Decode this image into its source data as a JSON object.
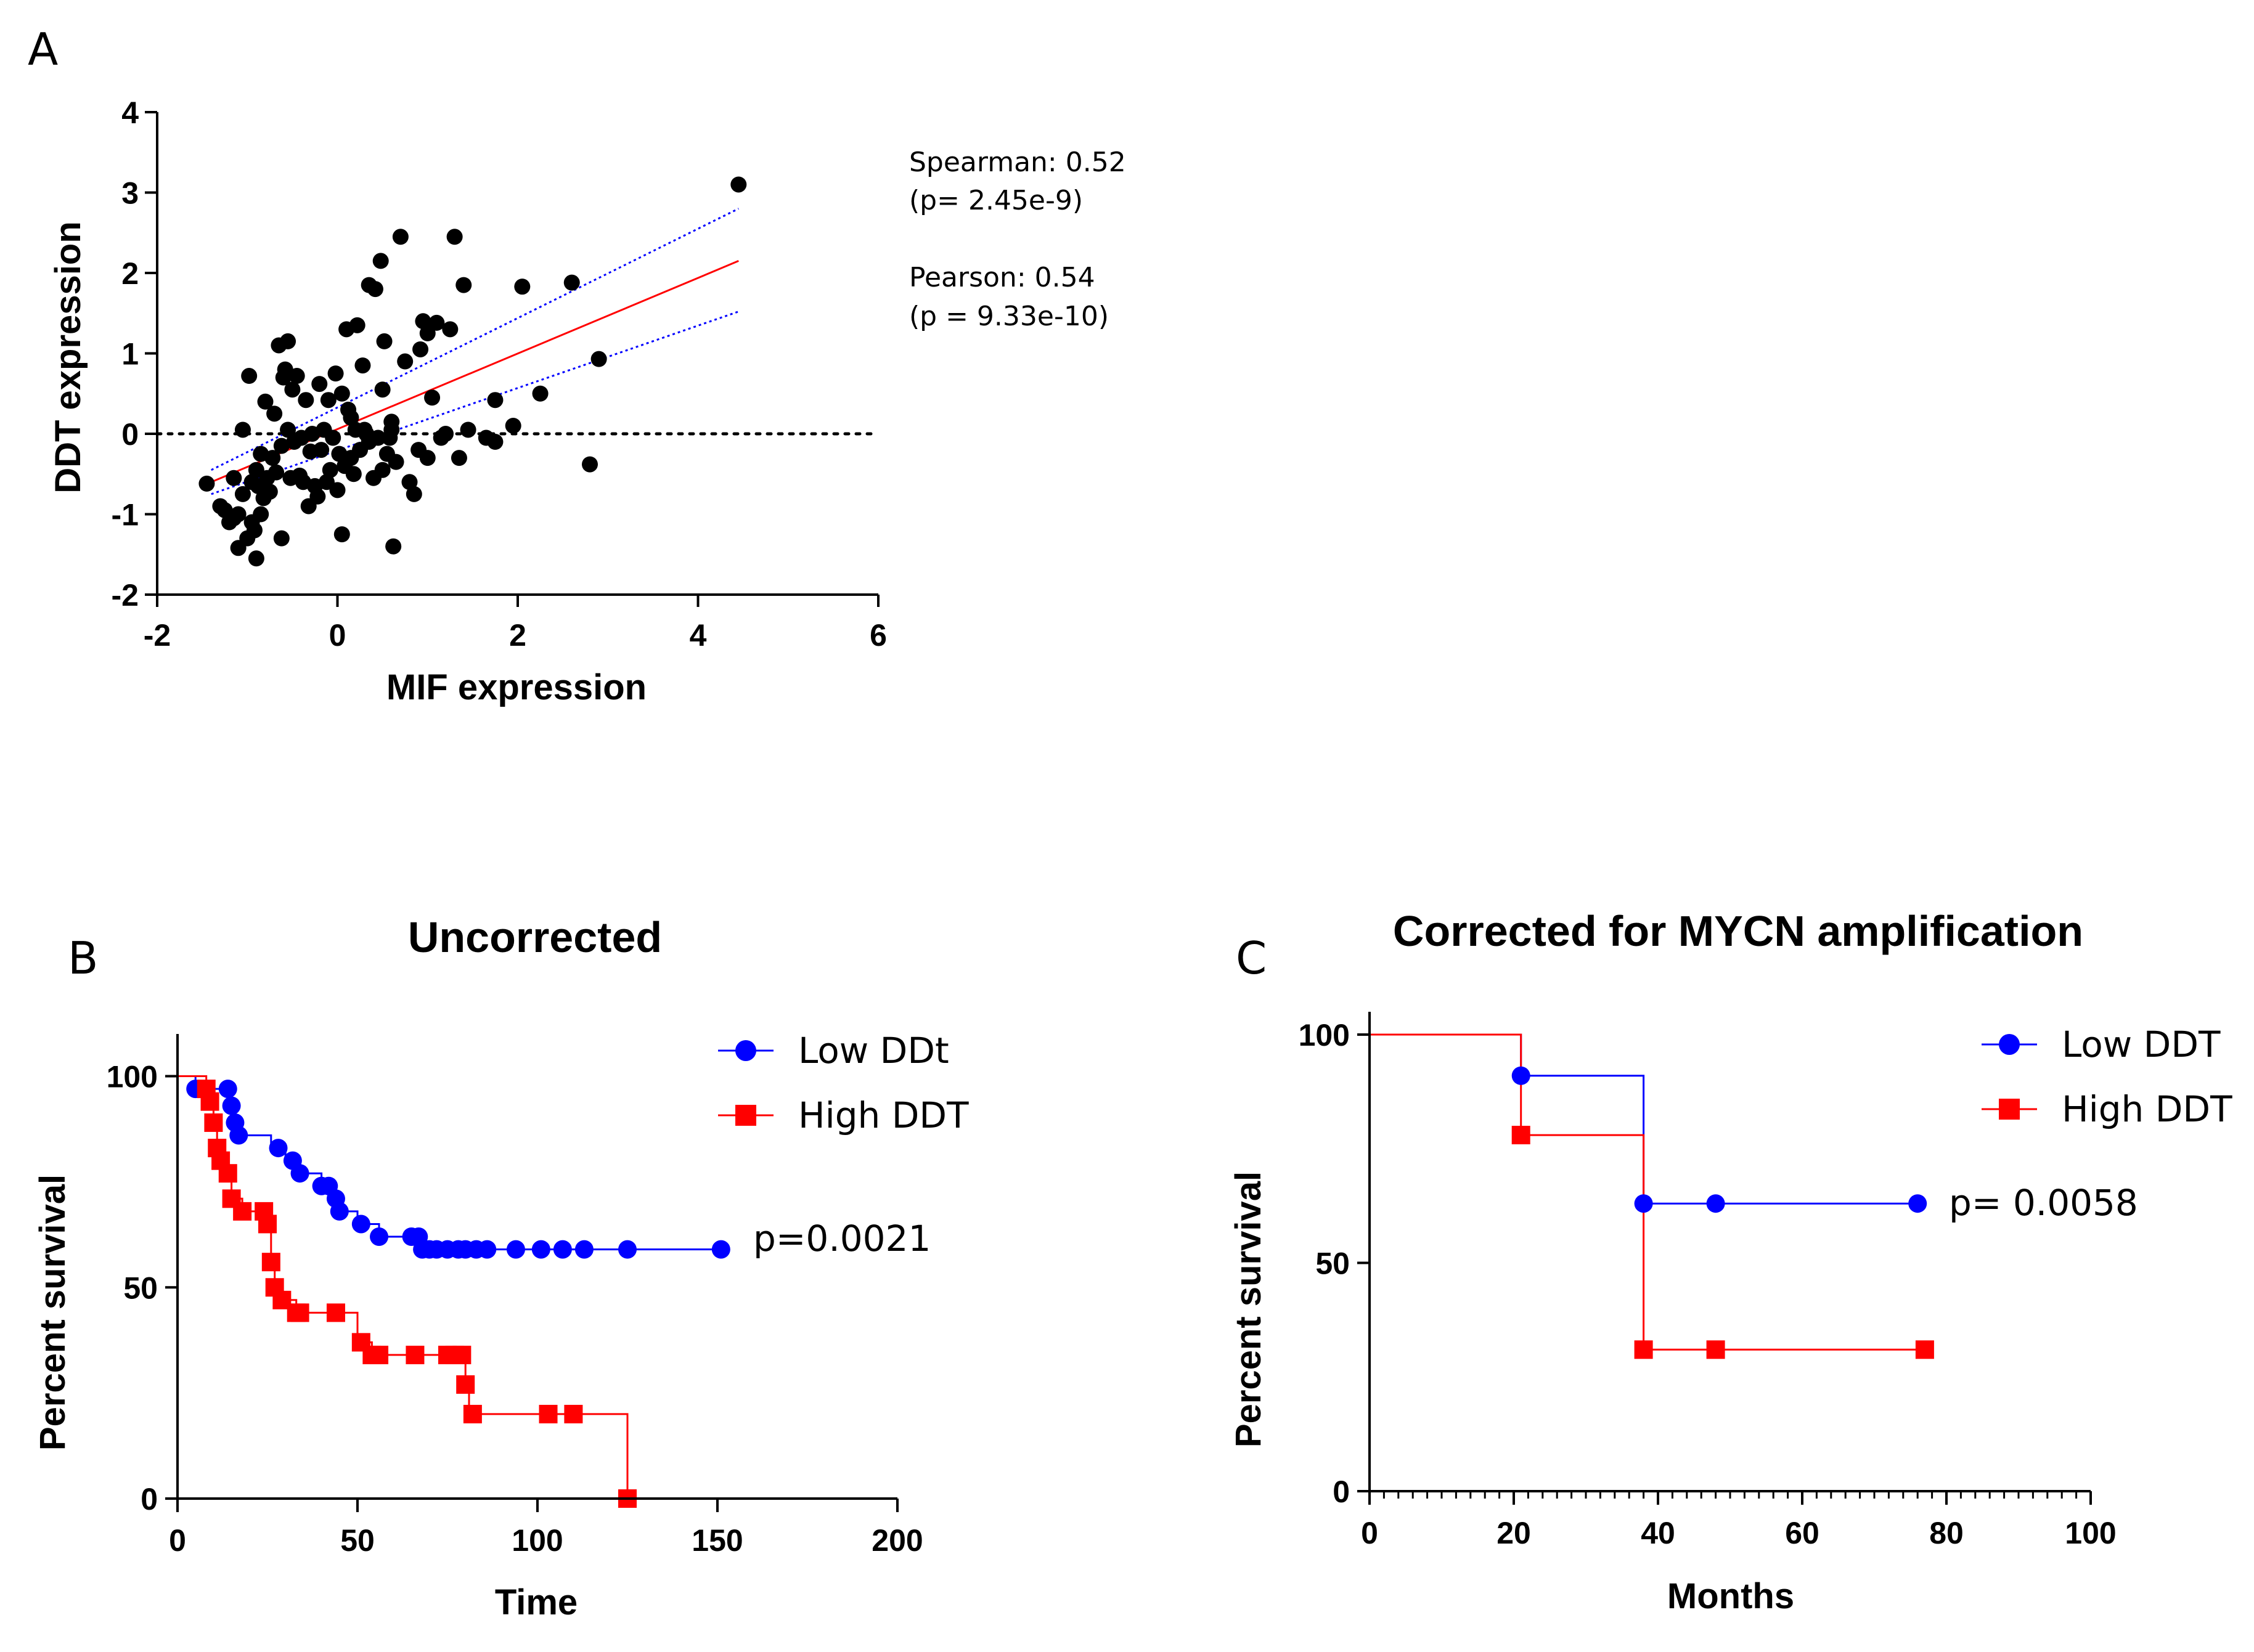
{
  "colors": {
    "low": "#0000ff",
    "high": "#ff0000",
    "points": "#000000",
    "fit": "#ff0000",
    "ci": "#0000ff"
  },
  "chart_data": [
    {
      "panel": "A",
      "type": "scatter",
      "title": "",
      "xlabel": "MIF expression",
      "ylabel": "DDT expression",
      "xlim": [
        -2,
        6
      ],
      "ylim": [
        -2,
        4
      ],
      "xticks": [
        "-2",
        "0",
        "2",
        "4",
        "6"
      ],
      "yticks": [
        "-2",
        "-1",
        "0",
        "1",
        "2",
        "3",
        "4"
      ],
      "zero_line": true,
      "annotations": [
        "Spearman: 0.52",
        "(p= 2.45e-9)",
        "Pearson: 0.54",
        "(p = 9.33e-10)"
      ],
      "regression": {
        "x": [
          -1.4,
          4.45
        ],
        "y": [
          -0.6,
          2.15
        ]
      },
      "ci_upper": {
        "x": [
          -1.4,
          4.45
        ],
        "y": [
          -0.45,
          2.8
        ]
      },
      "ci_lower": {
        "x": [
          -1.4,
          4.45
        ],
        "y": [
          -0.75,
          1.52
        ]
      },
      "points": [
        [
          -1.45,
          -0.62
        ],
        [
          -1.3,
          -0.9
        ],
        [
          -1.25,
          -0.95
        ],
        [
          -1.2,
          -1.1
        ],
        [
          -1.15,
          -0.55
        ],
        [
          -1.15,
          -1.05
        ],
        [
          -1.1,
          -1.42
        ],
        [
          -1.1,
          -1.0
        ],
        [
          -1.05,
          -0.75
        ],
        [
          -1.05,
          0.05
        ],
        [
          -1.0,
          -1.3
        ],
        [
          -0.98,
          0.72
        ],
        [
          -0.95,
          -0.6
        ],
        [
          -0.95,
          -1.1
        ],
        [
          -0.92,
          -1.2
        ],
        [
          -0.9,
          -1.55
        ],
        [
          -0.9,
          -0.45
        ],
        [
          -0.88,
          -0.65
        ],
        [
          -0.85,
          -0.25
        ],
        [
          -0.85,
          -1.0
        ],
        [
          -0.82,
          -0.8
        ],
        [
          -0.8,
          0.4
        ],
        [
          -0.78,
          -0.55
        ],
        [
          -0.75,
          -0.72
        ],
        [
          -0.72,
          -0.3
        ],
        [
          -0.7,
          0.25
        ],
        [
          -0.68,
          -0.48
        ],
        [
          -0.65,
          1.1
        ],
        [
          -0.62,
          -0.15
        ],
        [
          -0.62,
          -1.3
        ],
        [
          -0.6,
          0.7
        ],
        [
          -0.58,
          0.8
        ],
        [
          -0.55,
          1.15
        ],
        [
          -0.55,
          0.05
        ],
        [
          -0.52,
          -0.55
        ],
        [
          -0.5,
          0.55
        ],
        [
          -0.48,
          -0.1
        ],
        [
          -0.45,
          0.72
        ],
        [
          -0.42,
          -0.52
        ],
        [
          -0.4,
          -0.05
        ],
        [
          -0.38,
          -0.6
        ],
        [
          -0.35,
          0.42
        ],
        [
          -0.32,
          -0.9
        ],
        [
          -0.3,
          -0.22
        ],
        [
          -0.28,
          0.0
        ],
        [
          -0.25,
          -0.65
        ],
        [
          -0.22,
          -0.78
        ],
        [
          -0.2,
          0.62
        ],
        [
          -0.18,
          -0.2
        ],
        [
          -0.15,
          0.05
        ],
        [
          -0.12,
          -0.6
        ],
        [
          -0.1,
          0.42
        ],
        [
          -0.08,
          -0.45
        ],
        [
          -0.05,
          -0.05
        ],
        [
          -0.02,
          0.75
        ],
        [
          0.0,
          -0.7
        ],
        [
          0.02,
          -0.25
        ],
        [
          0.05,
          -1.25
        ],
        [
          0.05,
          0.5
        ],
        [
          0.08,
          -0.4
        ],
        [
          0.1,
          1.3
        ],
        [
          0.12,
          0.3
        ],
        [
          0.15,
          -0.3
        ],
        [
          0.15,
          0.2
        ],
        [
          0.18,
          -0.5
        ],
        [
          0.2,
          0.05
        ],
        [
          0.22,
          1.35
        ],
        [
          0.25,
          -0.2
        ],
        [
          0.28,
          0.85
        ],
        [
          0.3,
          0.05
        ],
        [
          0.32,
          0.0
        ],
        [
          0.35,
          1.85
        ],
        [
          0.35,
          -0.1
        ],
        [
          0.4,
          -0.55
        ],
        [
          0.42,
          1.8
        ],
        [
          0.45,
          -0.05
        ],
        [
          0.48,
          2.15
        ],
        [
          0.5,
          0.55
        ],
        [
          0.5,
          -0.45
        ],
        [
          0.52,
          1.15
        ],
        [
          0.55,
          -0.25
        ],
        [
          0.58,
          -0.05
        ],
        [
          0.6,
          0.15
        ],
        [
          0.6,
          0.05
        ],
        [
          0.62,
          -1.4
        ],
        [
          0.65,
          -0.35
        ],
        [
          0.7,
          2.45
        ],
        [
          0.75,
          0.9
        ],
        [
          0.8,
          -0.6
        ],
        [
          0.85,
          -0.75
        ],
        [
          0.9,
          -0.2
        ],
        [
          0.92,
          1.05
        ],
        [
          0.95,
          1.4
        ],
        [
          1.0,
          1.25
        ],
        [
          1.0,
          -0.3
        ],
        [
          1.05,
          0.45
        ],
        [
          1.1,
          1.38
        ],
        [
          1.15,
          -0.05
        ],
        [
          1.2,
          0.0
        ],
        [
          1.25,
          1.3
        ],
        [
          1.3,
          2.45
        ],
        [
          1.35,
          -0.3
        ],
        [
          1.4,
          1.85
        ],
        [
          1.45,
          0.05
        ],
        [
          1.65,
          -0.05
        ],
        [
          1.75,
          -0.1
        ],
        [
          1.75,
          0.42
        ],
        [
          1.95,
          0.1
        ],
        [
          2.05,
          1.83
        ],
        [
          2.25,
          0.5
        ],
        [
          2.6,
          1.88
        ],
        [
          2.8,
          -0.38
        ],
        [
          2.9,
          0.93
        ],
        [
          4.45,
          3.1
        ]
      ]
    },
    {
      "panel": "B",
      "type": "line",
      "subtype": "kaplan-meier",
      "title": "Uncorrected",
      "xlabel": "Time",
      "ylabel": "Percent survival",
      "xlim": [
        0,
        200
      ],
      "ylim": [
        0,
        110
      ],
      "xticks": [
        "0",
        "50",
        "100",
        "150",
        "200"
      ],
      "yticks": [
        "0",
        "50",
        "100"
      ],
      "annotation": "p=0.0021",
      "series": [
        {
          "name": "Low DDt",
          "key": "low",
          "steps": [
            [
              0,
              100
            ],
            [
              5,
              100
            ],
            [
              5,
              97
            ],
            [
              14,
              97
            ],
            [
              14,
              93
            ],
            [
              16,
              93
            ],
            [
              16,
              89
            ],
            [
              17,
              89
            ],
            [
              17,
              86
            ],
            [
              26,
              86
            ],
            [
              26,
              83
            ],
            [
              30,
              83
            ],
            [
              30,
              80
            ],
            [
              34,
              80
            ],
            [
              34,
              77
            ],
            [
              40,
              77
            ],
            [
              40,
              74
            ],
            [
              42,
              74
            ],
            [
              42,
              71
            ],
            [
              44,
              71
            ],
            [
              44,
              68
            ],
            [
              50,
              68
            ],
            [
              50,
              65
            ],
            [
              56,
              65
            ],
            [
              56,
              62
            ],
            [
              66,
              62
            ],
            [
              66,
              59
            ],
            [
              151,
              59
            ]
          ],
          "marks": [
            [
              5,
              97
            ],
            [
              14,
              97
            ],
            [
              15,
              93
            ],
            [
              16,
              89
            ],
            [
              17,
              86
            ],
            [
              28,
              83
            ],
            [
              32,
              80
            ],
            [
              34,
              77
            ],
            [
              40,
              74
            ],
            [
              42,
              74
            ],
            [
              44,
              71
            ],
            [
              45,
              68
            ],
            [
              51,
              65
            ],
            [
              56,
              62
            ],
            [
              65,
              62
            ],
            [
              67,
              62
            ],
            [
              68,
              59
            ],
            [
              70,
              59
            ],
            [
              72,
              59
            ],
            [
              75,
              59
            ],
            [
              78,
              59
            ],
            [
              80,
              59
            ],
            [
              83,
              59
            ],
            [
              86,
              59
            ],
            [
              94,
              59
            ],
            [
              101,
              59
            ],
            [
              107,
              59
            ],
            [
              113,
              59
            ],
            [
              125,
              59
            ],
            [
              151,
              59
            ]
          ]
        },
        {
          "name": "High DDT",
          "key": "high",
          "steps": [
            [
              0,
              100
            ],
            [
              8,
              100
            ],
            [
              8,
              97
            ],
            [
              9,
              97
            ],
            [
              9,
              94
            ],
            [
              10,
              94
            ],
            [
              10,
              89
            ],
            [
              11,
              89
            ],
            [
              11,
              83
            ],
            [
              12,
              83
            ],
            [
              12,
              80
            ],
            [
              14,
              80
            ],
            [
              14,
              77
            ],
            [
              15,
              77
            ],
            [
              15,
              71
            ],
            [
              18,
              71
            ],
            [
              18,
              68
            ],
            [
              24,
              68
            ],
            [
              24,
              65
            ],
            [
              26,
              65
            ],
            [
              26,
              56
            ],
            [
              27,
              56
            ],
            [
              27,
              50
            ],
            [
              29,
              50
            ],
            [
              29,
              47
            ],
            [
              33,
              47
            ],
            [
              33,
              44
            ],
            [
              50,
              44
            ],
            [
              50,
              37
            ],
            [
              54,
              37
            ],
            [
              54,
              34
            ],
            [
              80,
              34
            ],
            [
              80,
              27
            ],
            [
              81,
              27
            ],
            [
              81,
              20
            ],
            [
              125,
              20
            ],
            [
              125,
              0
            ]
          ],
          "marks": [
            [
              8,
              97
            ],
            [
              9,
              94
            ],
            [
              10,
              89
            ],
            [
              11,
              83
            ],
            [
              12,
              80
            ],
            [
              14,
              77
            ],
            [
              15,
              71
            ],
            [
              18,
              68
            ],
            [
              24,
              68
            ],
            [
              25,
              65
            ],
            [
              26,
              56
            ],
            [
              27,
              50
            ],
            [
              29,
              47
            ],
            [
              33,
              44
            ],
            [
              34,
              44
            ],
            [
              44,
              44
            ],
            [
              51,
              37
            ],
            [
              54,
              34
            ],
            [
              56,
              34
            ],
            [
              66,
              34
            ],
            [
              75,
              34
            ],
            [
              77,
              34
            ],
            [
              79,
              34
            ],
            [
              80,
              27
            ],
            [
              82,
              20
            ],
            [
              103,
              20
            ],
            [
              110,
              20
            ],
            [
              125,
              0
            ]
          ]
        }
      ]
    },
    {
      "panel": "C",
      "type": "line",
      "subtype": "kaplan-meier",
      "title": "Corrected for MYCN amplification",
      "xlabel": "Months",
      "ylabel": "Percent survival",
      "xlim": [
        0,
        100
      ],
      "ylim": [
        0,
        105
      ],
      "xticks": [
        "0",
        "20",
        "40",
        "60",
        "80",
        "100"
      ],
      "yticks": [
        "0",
        "50",
        "100"
      ],
      "annotation": "p= 0.0058",
      "series": [
        {
          "name": "Low DDT",
          "key": "low",
          "steps": [
            [
              0,
              100
            ],
            [
              21,
              100
            ],
            [
              21,
              91
            ],
            [
              38,
              91
            ],
            [
              38,
              63
            ],
            [
              76,
              63
            ]
          ],
          "marks": [
            [
              21,
              91
            ],
            [
              38,
              63
            ],
            [
              48,
              63
            ],
            [
              76,
              63
            ]
          ]
        },
        {
          "name": "High DDT",
          "key": "high",
          "steps": [
            [
              0,
              100
            ],
            [
              21,
              100
            ],
            [
              21,
              78
            ],
            [
              38,
              78
            ],
            [
              38,
              31
            ],
            [
              77,
              31
            ]
          ],
          "marks": [
            [
              21,
              78
            ],
            [
              38,
              31
            ],
            [
              48,
              31
            ],
            [
              77,
              31
            ]
          ]
        }
      ]
    }
  ]
}
